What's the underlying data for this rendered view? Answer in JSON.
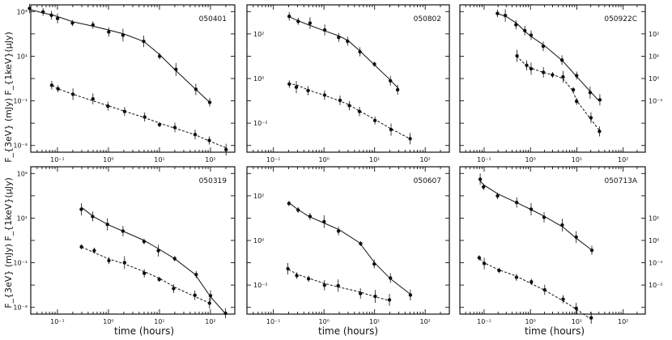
{
  "figure": {
    "ylabel_top": "F_{3eV} (mJy) F_{1keV}(μJy)",
    "ylabel_bottom": "F_{3eV} (mJy) F_{1keV}(μJy)",
    "xlabel": "time (hours)"
  },
  "chart_data": [
    {
      "type": "scatter",
      "title": "050401",
      "xscale": "log",
      "yscale": "log",
      "xlim": [
        0.03,
        300
      ],
      "ylim": [
        0.0005,
        2000
      ],
      "xticks": [
        "10⁻¹",
        "10⁰",
        "10¹",
        "10²"
      ],
      "xtick_values": [
        0.1,
        1,
        10,
        100
      ],
      "yticks": [
        "10⁻³",
        "10⁻¹",
        "10¹",
        "10³"
      ],
      "ytick_values": [
        0.001,
        0.1,
        10,
        1000
      ],
      "ytick_side": "left",
      "series": [
        {
          "style": "solid",
          "x": [
            0.03,
            0.05,
            0.08,
            0.1,
            0.2,
            0.5,
            1,
            2,
            5,
            10,
            20,
            50,
            100
          ],
          "y": [
            1200,
            900,
            700,
            600,
            350,
            220,
            150,
            100,
            45,
            12,
            2.5,
            0.35,
            0.08
          ]
        },
        {
          "style": "dashed",
          "x": [
            0.08,
            0.1,
            0.2,
            0.5,
            1,
            2,
            5,
            10,
            20,
            50,
            100,
            200
          ],
          "y": [
            0.5,
            0.35,
            0.2,
            0.1,
            0.06,
            0.035,
            0.018,
            0.01,
            0.006,
            0.003,
            0.0015,
            0.0008
          ]
        }
      ]
    },
    {
      "type": "scatter",
      "title": "050802",
      "xscale": "log",
      "yscale": "log",
      "xlim": [
        0.03,
        300
      ],
      "ylim": [
        0.0005,
        2000
      ],
      "xticks": [
        "10⁻¹",
        "10⁰",
        "10¹",
        "10²"
      ],
      "xtick_values": [
        0.1,
        1,
        10,
        100
      ],
      "yticks": [
        "10⁻²",
        "10⁰",
        "10²"
      ],
      "ytick_values": [
        0.01,
        1,
        100
      ],
      "ytick_side": "inside-left",
      "series": [
        {
          "style": "solid",
          "x": [
            0.2,
            0.3,
            0.5,
            1,
            2,
            3,
            5,
            10,
            20,
            30
          ],
          "y": [
            600,
            400,
            250,
            140,
            80,
            50,
            18,
            4,
            0.9,
            0.35
          ]
        },
        {
          "style": "dashed",
          "x": [
            0.2,
            0.3,
            0.5,
            1,
            2,
            3,
            5,
            10,
            20,
            50
          ],
          "y": [
            0.6,
            0.5,
            0.3,
            0.18,
            0.1,
            0.07,
            0.035,
            0.015,
            0.006,
            0.002
          ]
        }
      ]
    },
    {
      "type": "scatter",
      "title": "050922C",
      "xscale": "log",
      "yscale": "log",
      "xlim": [
        0.03,
        300
      ],
      "ylim": [
        0.0005,
        2000
      ],
      "xticks": [
        "10⁻¹",
        "10⁰",
        "10¹",
        "10²"
      ],
      "xtick_values": [
        0.1,
        1,
        10,
        100
      ],
      "yticks": [
        "10⁻¹",
        "10⁰",
        "10¹",
        "10²"
      ],
      "ytick_values": [
        0.1,
        1,
        10,
        100
      ],
      "ytick_side": "right",
      "series": [
        {
          "style": "solid",
          "x": [
            0.2,
            0.3,
            0.5,
            0.8,
            1,
            2,
            5,
            10,
            20,
            30
          ],
          "y": [
            800,
            600,
            300,
            120,
            80,
            30,
            6,
            1.2,
            0.25,
            0.1
          ]
        },
        {
          "style": "dashed",
          "x": [
            0.5,
            0.8,
            1,
            2,
            3,
            5,
            8,
            10,
            20,
            30
          ],
          "y": [
            10,
            4,
            3,
            1.8,
            1.5,
            1.0,
            0.3,
            0.1,
            0.015,
            0.005
          ]
        }
      ]
    },
    {
      "type": "scatter",
      "title": "050319",
      "xscale": "log",
      "yscale": "log",
      "xlim": [
        0.03,
        300
      ],
      "ylim": [
        0.0005,
        2000
      ],
      "xticks": [
        "10⁻¹",
        "10⁰",
        "10¹",
        "10²"
      ],
      "xtick_values": [
        0.1,
        1,
        10,
        100
      ],
      "yticks": [
        "10⁻³",
        "10⁻¹",
        "10¹",
        "10³"
      ],
      "ytick_values": [
        0.001,
        0.1,
        10,
        1000
      ],
      "ytick_side": "left",
      "series": [
        {
          "style": "solid",
          "x": [
            0.3,
            0.5,
            1,
            2,
            5,
            10,
            20,
            50,
            100,
            200
          ],
          "y": [
            30,
            12,
            5,
            2.5,
            1,
            0.4,
            0.15,
            0.03,
            0.003,
            0.0005
          ]
        },
        {
          "style": "dashed",
          "x": [
            0.3,
            0.5,
            1,
            2,
            5,
            10,
            20,
            50,
            100
          ],
          "y": [
            0.5,
            0.3,
            0.15,
            0.09,
            0.04,
            0.02,
            0.008,
            0.003,
            0.0015
          ]
        }
      ]
    },
    {
      "type": "scatter",
      "title": "050607",
      "xscale": "log",
      "yscale": "log",
      "xlim": [
        0.03,
        300
      ],
      "ylim": [
        0.0005,
        2000
      ],
      "xticks": [
        "10⁻¹",
        "10⁰",
        "10¹",
        "10²"
      ],
      "xtick_values": [
        0.1,
        1,
        10,
        100
      ],
      "yticks": [
        "10⁻²",
        "10⁰",
        "10²"
      ],
      "ytick_values": [
        0.01,
        1,
        100
      ],
      "ytick_side": "inside-left",
      "series": [
        {
          "style": "solid",
          "x": [
            0.2,
            0.3,
            0.5,
            1,
            2,
            5,
            10,
            20,
            50
          ],
          "y": [
            50,
            25,
            12,
            6,
            3,
            0.8,
            0.1,
            0.02,
            0.004
          ]
        },
        {
          "style": "dashed",
          "x": [
            0.2,
            0.3,
            0.5,
            1,
            2,
            5,
            10,
            20
          ],
          "y": [
            0.05,
            0.03,
            0.02,
            0.012,
            0.008,
            0.005,
            0.003,
            0.002
          ]
        }
      ]
    },
    {
      "type": "scatter",
      "title": "050713A",
      "xscale": "log",
      "yscale": "log",
      "xlim": [
        0.03,
        300
      ],
      "ylim": [
        0.0005,
        2000
      ],
      "xticks": [
        "10⁻¹",
        "10⁰",
        "10¹",
        "10²"
      ],
      "xtick_values": [
        0.1,
        1,
        10,
        100
      ],
      "yticks": [
        "10⁻²",
        "10⁻¹",
        "10⁰",
        "10¹"
      ],
      "ytick_values": [
        0.01,
        0.1,
        1,
        10
      ],
      "ytick_side": "right",
      "series": [
        {
          "style": "solid",
          "x": [
            0.08,
            0.1,
            0.2,
            0.5,
            1,
            2,
            5,
            10,
            20
          ],
          "y": [
            500,
            300,
            120,
            50,
            25,
            12,
            4,
            1.2,
            0.4
          ]
        },
        {
          "style": "dashed",
          "x": [
            0.08,
            0.1,
            0.2,
            0.5,
            1,
            2,
            5,
            10,
            20
          ],
          "y": [
            0.15,
            0.1,
            0.05,
            0.025,
            0.012,
            0.006,
            0.002,
            0.0008,
            0.0003
          ]
        }
      ]
    }
  ]
}
